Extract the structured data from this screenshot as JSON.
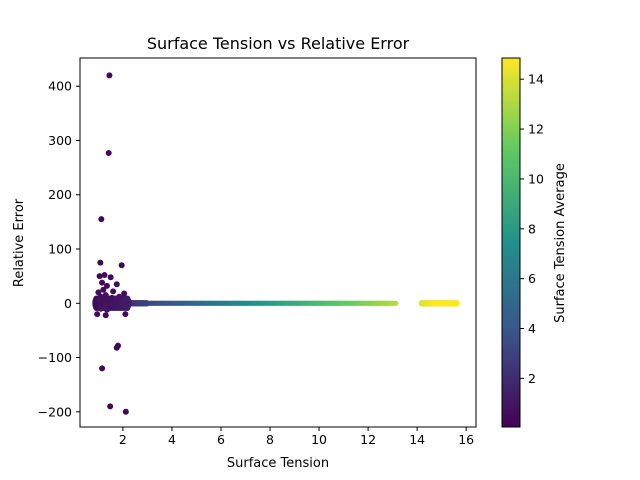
{
  "chart_data": {
    "type": "scatter",
    "title": "Surface Tension vs Relative Error",
    "xlabel": "Surface Tension",
    "ylabel": "Relative Error",
    "xlim": [
      0.25,
      16.4
    ],
    "ylim": [
      -228,
      452
    ],
    "xticks": [
      2,
      4,
      6,
      8,
      10,
      12,
      14,
      16
    ],
    "xtick_labels": [
      "2",
      "4",
      "6",
      "8",
      "10",
      "12",
      "14",
      "16"
    ],
    "yticks": [
      -200,
      -100,
      0,
      100,
      200,
      300,
      400
    ],
    "ytick_labels": [
      "−200",
      "−100",
      "0",
      "100",
      "200",
      "300",
      "400"
    ],
    "grid": false,
    "colormap": "viridis",
    "colorbar": {
      "label": "Surface Tension Average",
      "range": [
        0.05,
        14.85
      ],
      "ticks": [
        2,
        4,
        6,
        8,
        10,
        12,
        14
      ],
      "tick_labels": [
        "2",
        "4",
        "6",
        "8",
        "10",
        "12",
        "14"
      ]
    },
    "series": [
      {
        "points": [
          {
            "x": 1.45,
            "y": 420,
            "c": 0.3
          },
          {
            "x": 1.42,
            "y": 277,
            "c": 0.3
          },
          {
            "x": 1.12,
            "y": 155,
            "c": 0.3
          },
          {
            "x": 1.08,
            "y": 75,
            "c": 0.3
          },
          {
            "x": 1.95,
            "y": 70,
            "c": 0.4
          },
          {
            "x": 1.05,
            "y": 50,
            "c": 0.4
          },
          {
            "x": 1.25,
            "y": 52,
            "c": 0.4
          },
          {
            "x": 1.5,
            "y": 48,
            "c": 0.4
          },
          {
            "x": 1.15,
            "y": 38,
            "c": 0.5
          },
          {
            "x": 1.35,
            "y": 32,
            "c": 0.5
          },
          {
            "x": 1.75,
            "y": 35,
            "c": 0.5
          },
          {
            "x": 1.2,
            "y": 25,
            "c": 0.6
          },
          {
            "x": 1.0,
            "y": 20,
            "c": 0.6
          },
          {
            "x": 1.6,
            "y": 22,
            "c": 0.6
          },
          {
            "x": 2.05,
            "y": 18,
            "c": 0.6
          },
          {
            "x": 1.3,
            "y": 15,
            "c": 0.7
          },
          {
            "x": 1.1,
            "y": 12,
            "c": 0.7
          },
          {
            "x": 1.55,
            "y": 10,
            "c": 0.7
          },
          {
            "x": 1.85,
            "y": 12,
            "c": 0.8
          },
          {
            "x": 1.4,
            "y": 6,
            "c": 0.8
          },
          {
            "x": 1.05,
            "y": 5,
            "c": 0.8
          },
          {
            "x": 1.7,
            "y": 4,
            "c": 0.9
          },
          {
            "x": 1.25,
            "y": -5,
            "c": 0.9
          },
          {
            "x": 1.6,
            "y": -8,
            "c": 0.9
          },
          {
            "x": 1.1,
            "y": -10,
            "c": 1.0
          },
          {
            "x": 1.35,
            "y": -12,
            "c": 1.0
          },
          {
            "x": 0.95,
            "y": -20,
            "c": 0.5
          },
          {
            "x": 2.1,
            "y": -20,
            "c": 0.5
          },
          {
            "x": 1.3,
            "y": -22,
            "c": 0.5
          },
          {
            "x": 1.8,
            "y": -78,
            "c": 0.4
          },
          {
            "x": 1.75,
            "y": -82,
            "c": 0.4
          },
          {
            "x": 1.15,
            "y": -120,
            "c": 0.3
          },
          {
            "x": 1.48,
            "y": -190,
            "c": 0.3
          },
          {
            "x": 2.12,
            "y": -200,
            "c": 0.3
          }
        ]
      }
    ]
  }
}
